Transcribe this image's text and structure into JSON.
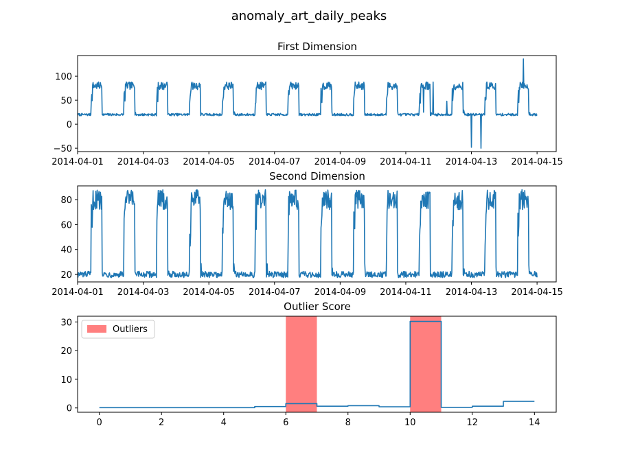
{
  "chart_data": {
    "suptitle": "anomaly_art_daily_peaks",
    "subplots": [
      {
        "type": "line",
        "title": "First Dimension",
        "x_type": "date",
        "xlim": [
          "2014-04-01T00:00",
          "2014-04-15T14:00"
        ],
        "ylim": [
          -57,
          143
        ],
        "xticks": [
          "2014-04-01",
          "2014-04-03",
          "2014-04-05",
          "2014-04-07",
          "2014-04-09",
          "2014-04-11",
          "2014-04-13",
          "2014-04-15"
        ],
        "yticks": [
          -50,
          0,
          50,
          100
        ],
        "pattern": {
          "start": "2014-04-01T00:00",
          "end": "2014-04-15T00:00",
          "step_minutes": 20,
          "low": 20,
          "high": 80,
          "high_noise": 8,
          "low_noise": 2.5,
          "rise_hour": 10,
          "fall_hour": 18
        },
        "spikes": [
          {
            "t": "2014-04-11T13:00",
            "v": 25
          },
          {
            "t": "2014-04-11T15:00",
            "v": 88
          },
          {
            "t": "2014-04-11T20:00",
            "v": 88
          },
          {
            "t": "2014-04-12T06:00",
            "v": 48
          },
          {
            "t": "2014-04-13T00:00",
            "v": -48
          },
          {
            "t": "2014-04-13T07:00",
            "v": -50
          },
          {
            "t": "2014-04-14T14:00",
            "v": 136
          }
        ],
        "series_color": "#1f77b4"
      },
      {
        "type": "line",
        "title": "Second Dimension",
        "x_type": "date",
        "xlim": [
          "2014-04-01T00:00",
          "2014-04-15T14:00"
        ],
        "ylim": [
          14,
          91
        ],
        "xticks": [
          "2014-04-01",
          "2014-04-03",
          "2014-04-05",
          "2014-04-07",
          "2014-04-09",
          "2014-04-11",
          "2014-04-13",
          "2014-04-15"
        ],
        "yticks": [
          20,
          40,
          60,
          80
        ],
        "pattern": {
          "start": "2014-04-01T00:00",
          "end": "2014-04-15T00:00",
          "step_minutes": 20,
          "low": 20,
          "high": 80,
          "high_noise": 8,
          "low_noise": 2.5,
          "rise_hour": 10,
          "fall_hour": 18
        },
        "series_color": "#1f77b4"
      },
      {
        "type": "line",
        "title": "Outlier Score",
        "x_type": "number",
        "xlim": [
          -0.7,
          14.7
        ],
        "ylim": [
          -1.5,
          32
        ],
        "xticks": [
          0,
          2,
          4,
          6,
          8,
          10,
          12,
          14
        ],
        "yticks": [
          0,
          10,
          20,
          30
        ],
        "step_x": [
          0,
          1,
          2,
          3,
          4,
          5,
          6,
          7,
          8,
          9,
          10,
          11,
          12,
          13,
          14
        ],
        "step_y": [
          0.1,
          0.1,
          0.1,
          0.1,
          0.1,
          0.5,
          1.5,
          0.6,
          0.8,
          0.4,
          30.2,
          0.2,
          0.6,
          2.3,
          2.3
        ],
        "outlier_spans": [
          [
            6,
            7
          ],
          [
            10,
            11
          ]
        ],
        "outlier_color": "#ff0000",
        "outlier_alpha": 0.5,
        "legend": {
          "label": "Outliers",
          "placement": "upper-left"
        },
        "series_color": "#1f77b4"
      }
    ]
  }
}
